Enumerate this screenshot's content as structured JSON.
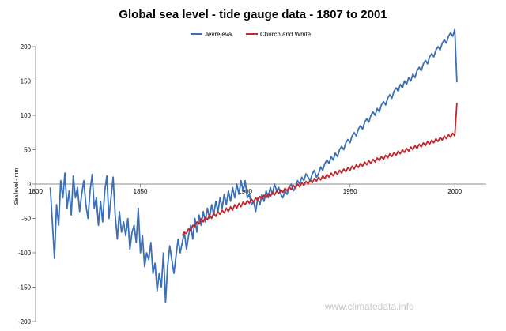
{
  "chart_data": {
    "type": "line",
    "title": "Global sea level - tide gauge data - 1807 to 2001",
    "xlabel": "",
    "ylabel": "Sea level - mm",
    "xlim": [
      1800,
      2015
    ],
    "ylim": [
      -200,
      200
    ],
    "xticks": [
      1800,
      1850,
      1900,
      1950,
      2000
    ],
    "yticks": [
      -200,
      -150,
      -100,
      -50,
      0,
      50,
      100,
      150,
      200
    ],
    "legend_position": "top-center",
    "grid": false,
    "watermark": "www.climatedata.info",
    "series": [
      {
        "name": "Jevrejeva",
        "color": "#3b6fb6",
        "points": [
          [
            1807,
            -5
          ],
          [
            1808,
            -55
          ],
          [
            1809,
            -108
          ],
          [
            1810,
            -30
          ],
          [
            1811,
            -60
          ],
          [
            1812,
            5
          ],
          [
            1813,
            -20
          ],
          [
            1814,
            16
          ],
          [
            1815,
            -35
          ],
          [
            1816,
            -10
          ],
          [
            1817,
            -45
          ],
          [
            1818,
            12
          ],
          [
            1819,
            -20
          ],
          [
            1820,
            -5
          ],
          [
            1821,
            -40
          ],
          [
            1822,
            -15
          ],
          [
            1823,
            5
          ],
          [
            1824,
            -30
          ],
          [
            1825,
            -50
          ],
          [
            1826,
            -10
          ],
          [
            1827,
            14
          ],
          [
            1828,
            -35
          ],
          [
            1829,
            -20
          ],
          [
            1830,
            -60
          ],
          [
            1831,
            -25
          ],
          [
            1832,
            -55
          ],
          [
            1833,
            -10
          ],
          [
            1834,
            12
          ],
          [
            1835,
            -50
          ],
          [
            1836,
            -20
          ],
          [
            1837,
            10
          ],
          [
            1838,
            -45
          ],
          [
            1839,
            -80
          ],
          [
            1840,
            -40
          ],
          [
            1841,
            -70
          ],
          [
            1842,
            -55
          ],
          [
            1843,
            -75
          ],
          [
            1844,
            -50
          ],
          [
            1845,
            -95
          ],
          [
            1846,
            -70
          ],
          [
            1847,
            -60
          ],
          [
            1848,
            -85
          ],
          [
            1849,
            -35
          ],
          [
            1850,
            -100
          ],
          [
            1851,
            -75
          ],
          [
            1852,
            -120
          ],
          [
            1853,
            -100
          ],
          [
            1854,
            -110
          ],
          [
            1855,
            -85
          ],
          [
            1856,
            -130
          ],
          [
            1857,
            -115
          ],
          [
            1858,
            -155
          ],
          [
            1859,
            -130
          ],
          [
            1860,
            -150
          ],
          [
            1861,
            -100
          ],
          [
            1862,
            -172
          ],
          [
            1863,
            -120
          ],
          [
            1864,
            -90
          ],
          [
            1865,
            -110
          ],
          [
            1866,
            -130
          ],
          [
            1867,
            -105
          ],
          [
            1868,
            -80
          ],
          [
            1869,
            -100
          ],
          [
            1870,
            -85
          ],
          [
            1871,
            -70
          ],
          [
            1872,
            -95
          ],
          [
            1873,
            -75
          ],
          [
            1874,
            -60
          ],
          [
            1875,
            -80
          ],
          [
            1876,
            -50
          ],
          [
            1877,
            -70
          ],
          [
            1878,
            -45
          ],
          [
            1879,
            -60
          ],
          [
            1880,
            -40
          ],
          [
            1881,
            -55
          ],
          [
            1882,
            -35
          ],
          [
            1883,
            -50
          ],
          [
            1884,
            -30
          ],
          [
            1885,
            -45
          ],
          [
            1886,
            -25
          ],
          [
            1887,
            -40
          ],
          [
            1888,
            -20
          ],
          [
            1889,
            -35
          ],
          [
            1890,
            -15
          ],
          [
            1891,
            -30
          ],
          [
            1892,
            -10
          ],
          [
            1893,
            -25
          ],
          [
            1894,
            -5
          ],
          [
            1895,
            -20
          ],
          [
            1896,
            0
          ],
          [
            1897,
            -15
          ],
          [
            1898,
            5
          ],
          [
            1899,
            -10
          ],
          [
            1900,
            5
          ],
          [
            1901,
            -20
          ],
          [
            1902,
            -15
          ],
          [
            1903,
            -30
          ],
          [
            1904,
            -25
          ],
          [
            1905,
            -40
          ],
          [
            1906,
            -20
          ],
          [
            1907,
            -30
          ],
          [
            1908,
            -15
          ],
          [
            1909,
            -25
          ],
          [
            1910,
            -10
          ],
          [
            1911,
            -20
          ],
          [
            1912,
            -5
          ],
          [
            1913,
            -15
          ],
          [
            1914,
            0
          ],
          [
            1915,
            -10
          ],
          [
            1916,
            -5
          ],
          [
            1917,
            -15
          ],
          [
            1918,
            -20
          ],
          [
            1919,
            -10
          ],
          [
            1920,
            -15
          ],
          [
            1921,
            -5
          ],
          [
            1922,
            0
          ],
          [
            1923,
            -10
          ],
          [
            1924,
            -5
          ],
          [
            1925,
            5
          ],
          [
            1926,
            0
          ],
          [
            1927,
            10
          ],
          [
            1928,
            5
          ],
          [
            1929,
            15
          ],
          [
            1930,
            10
          ],
          [
            1931,
            5
          ],
          [
            1932,
            15
          ],
          [
            1933,
            20
          ],
          [
            1934,
            10
          ],
          [
            1935,
            15
          ],
          [
            1936,
            25
          ],
          [
            1937,
            20
          ],
          [
            1938,
            30
          ],
          [
            1939,
            35
          ],
          [
            1940,
            30
          ],
          [
            1941,
            40
          ],
          [
            1942,
            35
          ],
          [
            1943,
            45
          ],
          [
            1944,
            40
          ],
          [
            1945,
            50
          ],
          [
            1946,
            55
          ],
          [
            1947,
            50
          ],
          [
            1948,
            60
          ],
          [
            1949,
            65
          ],
          [
            1950,
            60
          ],
          [
            1951,
            70
          ],
          [
            1952,
            75
          ],
          [
            1953,
            70
          ],
          [
            1954,
            80
          ],
          [
            1955,
            85
          ],
          [
            1956,
            80
          ],
          [
            1957,
            90
          ],
          [
            1958,
            95
          ],
          [
            1959,
            90
          ],
          [
            1960,
            100
          ],
          [
            1961,
            105
          ],
          [
            1962,
            100
          ],
          [
            1963,
            110
          ],
          [
            1964,
            105
          ],
          [
            1965,
            115
          ],
          [
            1966,
            120
          ],
          [
            1967,
            115
          ],
          [
            1968,
            125
          ],
          [
            1969,
            130
          ],
          [
            1970,
            125
          ],
          [
            1971,
            135
          ],
          [
            1972,
            140
          ],
          [
            1973,
            135
          ],
          [
            1974,
            145
          ],
          [
            1975,
            140
          ],
          [
            1976,
            150
          ],
          [
            1977,
            145
          ],
          [
            1978,
            155
          ],
          [
            1979,
            150
          ],
          [
            1980,
            160
          ],
          [
            1981,
            155
          ],
          [
            1982,
            165
          ],
          [
            1983,
            170
          ],
          [
            1984,
            165
          ],
          [
            1985,
            175
          ],
          [
            1986,
            180
          ],
          [
            1987,
            175
          ],
          [
            1988,
            185
          ],
          [
            1989,
            190
          ],
          [
            1990,
            185
          ],
          [
            1991,
            195
          ],
          [
            1992,
            200
          ],
          [
            1993,
            195
          ],
          [
            1994,
            205
          ],
          [
            1995,
            210
          ],
          [
            1996,
            205
          ],
          [
            1997,
            215
          ],
          [
            1998,
            220
          ],
          [
            1999,
            215
          ],
          [
            2000,
            225
          ],
          [
            2001,
            148
          ]
        ]
      },
      {
        "name": "Church and White",
        "color": "#c0282d",
        "points": [
          [
            1870,
            -75
          ],
          [
            1871,
            -70
          ],
          [
            1872,
            -72
          ],
          [
            1873,
            -65
          ],
          [
            1874,
            -68
          ],
          [
            1875,
            -60
          ],
          [
            1876,
            -62
          ],
          [
            1877,
            -55
          ],
          [
            1878,
            -58
          ],
          [
            1879,
            -50
          ],
          [
            1880,
            -55
          ],
          [
            1881,
            -48
          ],
          [
            1882,
            -52
          ],
          [
            1883,
            -45
          ],
          [
            1884,
            -50
          ],
          [
            1885,
            -42
          ],
          [
            1886,
            -47
          ],
          [
            1887,
            -40
          ],
          [
            1888,
            -44
          ],
          [
            1889,
            -38
          ],
          [
            1890,
            -42
          ],
          [
            1891,
            -35
          ],
          [
            1892,
            -40
          ],
          [
            1893,
            -33
          ],
          [
            1894,
            -38
          ],
          [
            1895,
            -30
          ],
          [
            1896,
            -35
          ],
          [
            1897,
            -28
          ],
          [
            1898,
            -33
          ],
          [
            1899,
            -26
          ],
          [
            1900,
            -30
          ],
          [
            1901,
            -24
          ],
          [
            1902,
            -28
          ],
          [
            1903,
            -22
          ],
          [
            1904,
            -26
          ],
          [
            1905,
            -20
          ],
          [
            1906,
            -24
          ],
          [
            1907,
            -18
          ],
          [
            1908,
            -22
          ],
          [
            1909,
            -16
          ],
          [
            1910,
            -20
          ],
          [
            1911,
            -14
          ],
          [
            1912,
            -18
          ],
          [
            1913,
            -12
          ],
          [
            1914,
            -16
          ],
          [
            1915,
            -10
          ],
          [
            1916,
            -14
          ],
          [
            1917,
            -8
          ],
          [
            1918,
            -12
          ],
          [
            1919,
            -6
          ],
          [
            1920,
            -10
          ],
          [
            1921,
            -4
          ],
          [
            1922,
            -8
          ],
          [
            1923,
            -2
          ],
          [
            1924,
            -6
          ],
          [
            1925,
            0
          ],
          [
            1926,
            -4
          ],
          [
            1927,
            2
          ],
          [
            1928,
            -2
          ],
          [
            1929,
            4
          ],
          [
            1930,
            0
          ],
          [
            1931,
            6
          ],
          [
            1932,
            2
          ],
          [
            1933,
            8
          ],
          [
            1934,
            4
          ],
          [
            1935,
            10
          ],
          [
            1936,
            6
          ],
          [
            1937,
            12
          ],
          [
            1938,
            8
          ],
          [
            1939,
            14
          ],
          [
            1940,
            10
          ],
          [
            1941,
            16
          ],
          [
            1942,
            12
          ],
          [
            1943,
            18
          ],
          [
            1944,
            14
          ],
          [
            1945,
            20
          ],
          [
            1946,
            16
          ],
          [
            1947,
            22
          ],
          [
            1948,
            18
          ],
          [
            1949,
            24
          ],
          [
            1950,
            20
          ],
          [
            1951,
            26
          ],
          [
            1952,
            22
          ],
          [
            1953,
            28
          ],
          [
            1954,
            24
          ],
          [
            1955,
            30
          ],
          [
            1956,
            26
          ],
          [
            1957,
            32
          ],
          [
            1958,
            28
          ],
          [
            1959,
            34
          ],
          [
            1960,
            30
          ],
          [
            1961,
            36
          ],
          [
            1962,
            32
          ],
          [
            1963,
            38
          ],
          [
            1964,
            34
          ],
          [
            1965,
            40
          ],
          [
            1966,
            36
          ],
          [
            1967,
            42
          ],
          [
            1968,
            38
          ],
          [
            1969,
            44
          ],
          [
            1970,
            40
          ],
          [
            1971,
            46
          ],
          [
            1972,
            42
          ],
          [
            1973,
            48
          ],
          [
            1974,
            44
          ],
          [
            1975,
            50
          ],
          [
            1976,
            46
          ],
          [
            1977,
            52
          ],
          [
            1978,
            48
          ],
          [
            1979,
            54
          ],
          [
            1980,
            50
          ],
          [
            1981,
            56
          ],
          [
            1982,
            52
          ],
          [
            1983,
            58
          ],
          [
            1984,
            54
          ],
          [
            1985,
            60
          ],
          [
            1986,
            56
          ],
          [
            1987,
            62
          ],
          [
            1988,
            58
          ],
          [
            1989,
            64
          ],
          [
            1990,
            60
          ],
          [
            1991,
            66
          ],
          [
            1992,
            62
          ],
          [
            1993,
            68
          ],
          [
            1994,
            64
          ],
          [
            1995,
            70
          ],
          [
            1996,
            66
          ],
          [
            1997,
            72
          ],
          [
            1998,
            68
          ],
          [
            1999,
            74
          ],
          [
            2000,
            70
          ],
          [
            2001,
            118
          ]
        ]
      }
    ]
  }
}
